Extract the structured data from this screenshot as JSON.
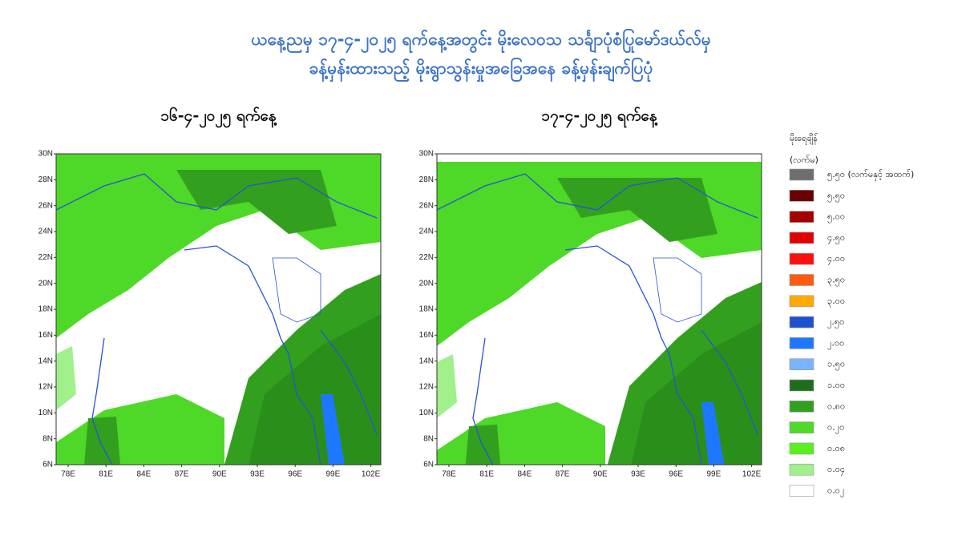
{
  "title": [
    "ယနေ့ညမှ ၁၇-၄-၂၀၂၅ ရက်နေ့အတွင်း မိုးလေဝသ သင်္ချာပုံစံပြုမော်ဒယ်လ်မှ",
    "ခန့်မှန်းထားသည့် မိုးရွာသွန်းမှုအခြေအနေ ခန့်မှန်းချက်ပြပုံ"
  ],
  "panels": [
    {
      "title": "၁၆-၄-၂၀၂၅ ရက်နေ့"
    },
    {
      "title": "၁၇-၄-၂၀၂၅ ရက်နေ့"
    }
  ],
  "lon_labels": [
    "78E",
    "81E",
    "84E",
    "87E",
    "90E",
    "93E",
    "96E",
    "99E",
    "102E"
  ],
  "lat_labels": [
    "30N",
    "28N",
    "26N",
    "24N",
    "22N",
    "20N",
    "18N",
    "16N",
    "14N",
    "12N",
    "10N",
    "8N",
    "6N"
  ],
  "legend": {
    "title": "မိုးရေချိန်",
    "unit": "(လက်မ)",
    "items": [
      {
        "label": "၅.၅၀ (လက်မနှင့် အထက်)",
        "color": "#6e6e6e"
      },
      {
        "label": "၅.၅၀",
        "color": "#6b0000"
      },
      {
        "label": "၅.၀၀",
        "color": "#a50000"
      },
      {
        "label": "၄.၅၀",
        "color": "#e00000"
      },
      {
        "label": "၄.၀၀",
        "color": "#ff1010"
      },
      {
        "label": "၃.၅၀",
        "color": "#ff5a10"
      },
      {
        "label": "၃.၀၀",
        "color": "#ffaa00"
      },
      {
        "label": "၂.၅၀",
        "color": "#1e50d2"
      },
      {
        "label": "၂.၀၀",
        "color": "#1e78ff"
      },
      {
        "label": "၁.၅၀",
        "color": "#78b4ff"
      },
      {
        "label": "၁.၀၀",
        "color": "#1e6e1e"
      },
      {
        "label": "၀.၈၀",
        "color": "#32a01e"
      },
      {
        "label": "၀.၂၀",
        "color": "#4ed828"
      },
      {
        "label": "၀.၀၈",
        "color": "#5af01e"
      },
      {
        "label": "၀.၀၄",
        "color": "#a0f08c"
      },
      {
        "label": "၀.၀၂",
        "color": "#ffffff"
      }
    ]
  }
}
